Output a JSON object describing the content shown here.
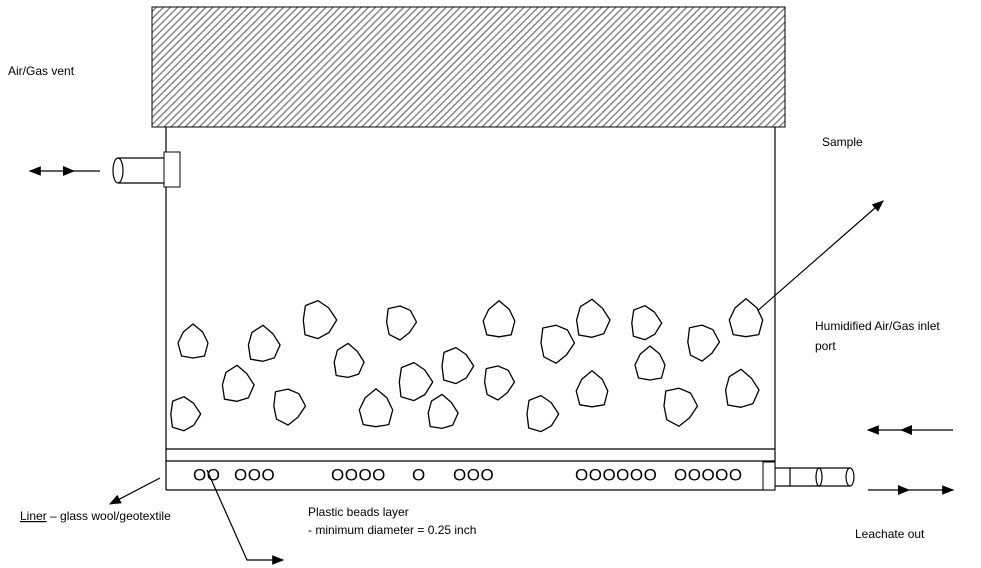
{
  "labels": {
    "vent": "Air/Gas vent",
    "sample": "Sample",
    "inlet": [
      "Humidified Air/Gas inlet",
      "port"
    ],
    "liner_term": "Liner",
    "liner_rest": " – glass wool/geotextile",
    "beads_title": "Plastic beads layer",
    "beads_note": "- minimum diameter = 0.25 inch",
    "leachate": "Leachate out"
  },
  "beads": [
    "OO",
    "OOO",
    "OOOO",
    "O",
    "OOO",
    "OOOOOO",
    "OOOOO"
  ]
}
